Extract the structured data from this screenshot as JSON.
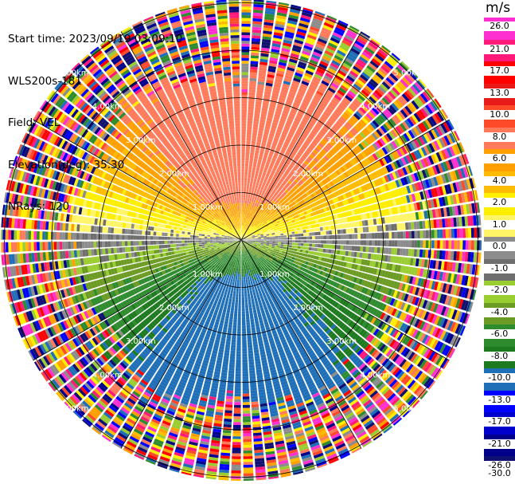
{
  "header": {
    "start_time": "Start time: 2023/09/19 03:09:10",
    "instrument": "WLS200s-181",
    "field": "Field: VEL",
    "elevation": "Elevation(deg): 35.30",
    "nrays": "NRays: 120"
  },
  "colorbar": {
    "unit": "m/s",
    "ticks": [
      "26.0",
      "21.0",
      "17.0",
      "13.0",
      "10.0",
      "8.0",
      "6.0",
      "4.0",
      "2.0",
      "1.0",
      "0.0",
      "-1.0",
      "-2.0",
      "-4.0",
      "-6.0",
      "-8.0",
      "-10.0",
      "-13.0",
      "-17.0",
      "-21.0",
      "-26.0",
      "-30.0"
    ],
    "colors": [
      "#ff2fd0",
      "#ff1a7a",
      "#ff0000",
      "#e81a1a",
      "#ff4a2a",
      "#ff7a5a",
      "#ff9f00",
      "#ffbb00",
      "#ffee00",
      "#fff566",
      "#8c8c8c",
      "#6e6e6e",
      "#9acd32",
      "#6b9b22",
      "#2e8b2e",
      "#1e7a1e",
      "#1e6fb8",
      "#0000ff",
      "#0000cc",
      "#00008b",
      "#101070"
    ]
  },
  "ppi": {
    "range_labels": [
      "1.00km",
      "2.00km",
      "3.00km",
      "4.00km",
      "5.00km"
    ]
  }
}
